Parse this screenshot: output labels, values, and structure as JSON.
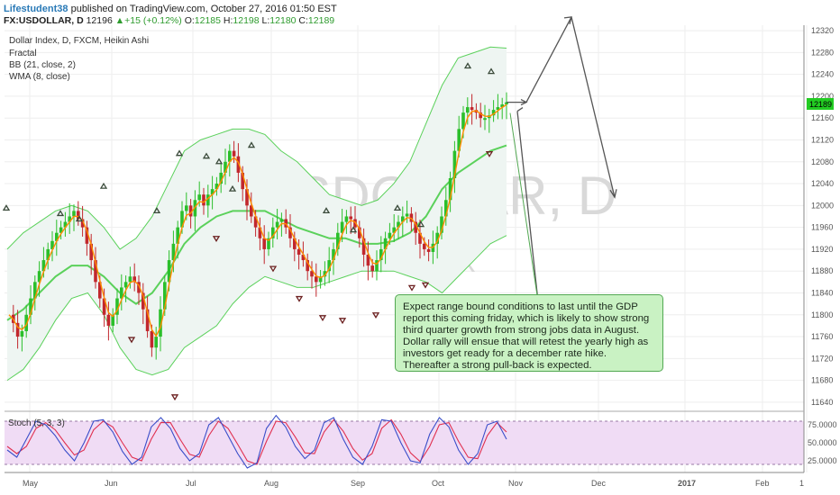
{
  "header": {
    "author": "Lifestudent38",
    "published": "published on TradingView.com, October 27, 2016 01:50 EST",
    "symbol": "FX:USDOLLAR, D",
    "last": "12196",
    "change": "+15 (+0.12%)",
    "open_label": "O:",
    "open": "12185",
    "high_label": "H:",
    "high": "12198",
    "low_label": "L:",
    "low": "12180",
    "close_label": "C:",
    "close": "12189"
  },
  "legend": {
    "main": "Dollar Index, D, FXCM, Heikin Ashi",
    "ind1": "Fractal",
    "ind2": "BB (21, close, 2)",
    "ind3": "WMA (8, close)",
    "stoch": "Stoch (5, 3, 3)"
  },
  "watermark": {
    "symbol": "USDOLLAR, D",
    "name": "Dollar Index"
  },
  "annotation": "Expect range bound conditions to last until the GDP report this coming friday, which is likely to show strong third quarter growth from strong jobs data in August. Dollar rally will ensue that will retest the yearly high as investors get ready for a december rate hike. Thereafter a strong pull-back is expected.",
  "price_badge": "12189",
  "colors": {
    "bull": "#2bbf2b",
    "bear": "#c1272d",
    "band": "#5bd15b",
    "band_fill": "#eef5f2",
    "wma": "#ff8c00",
    "stoch_k": "#3a4ec9",
    "stoch_d": "#e03050",
    "stoch_bg": "#f0dcf5",
    "arrow": "#555555",
    "badge": "#22cc22"
  },
  "chart_data": {
    "type": "candlestick",
    "title": "Dollar Index, D, FXCM, Heikin Ashi",
    "x_ticks": [
      "May",
      "Jun",
      "Jul",
      "Aug",
      "Sep",
      "Oct",
      "Nov",
      "Dec",
      "2017",
      "Feb",
      "1"
    ],
    "y_ticks": [
      11640,
      11680,
      11720,
      11760,
      11800,
      11840,
      11880,
      11920,
      11960,
      12000,
      12040,
      12080,
      12120,
      12160,
      12200,
      12240,
      12280,
      12320
    ],
    "ylim": [
      11625,
      12330
    ],
    "close_path": [
      11800,
      11785,
      11760,
      11770,
      11800,
      11830,
      11860,
      11880,
      11900,
      11920,
      11935,
      11950,
      11960,
      11970,
      11980,
      11990,
      11975,
      11960,
      11930,
      11900,
      11860,
      11830,
      11800,
      11780,
      11800,
      11830,
      11850,
      11860,
      11870,
      11860,
      11840,
      11810,
      11770,
      11740,
      11760,
      11810,
      11860,
      11900,
      11930,
      11960,
      11990,
      12000,
      11980,
      12010,
      12020,
      12000,
      12020,
      12030,
      12040,
      12060,
      12080,
      12100,
      12090,
      12060,
      12030,
      12000,
      11980,
      11960,
      11940,
      11920,
      11940,
      11960,
      11970,
      11975,
      11960,
      11940,
      11920,
      11910,
      11900,
      11880,
      11870,
      11860,
      11870,
      11880,
      11900,
      11920,
      11950,
      11970,
      11980,
      11975,
      11960,
      11940,
      11910,
      11890,
      11880,
      11900,
      11920,
      11940,
      11950,
      11960,
      11970,
      11980,
      11985,
      11970,
      11950,
      11930,
      11920,
      11915,
      11930,
      11950,
      11980,
      12010,
      12050,
      12100,
      12140,
      12170,
      12180,
      12175,
      12170,
      12160,
      12160,
      12165,
      12175,
      12180,
      12185,
      12189
    ],
    "bb_upper": [
      11920,
      11950,
      11970,
      11990,
      12000,
      11990,
      11960,
      11920,
      11940,
      11980,
      12040,
      12100,
      12120,
      12130,
      12140,
      12140,
      12130,
      12100,
      12080,
      12050,
      12020,
      12010,
      12000,
      12010,
      12040,
      12080,
      12150,
      12220,
      12270,
      12280,
      12290,
      12288
    ],
    "bb_lower": [
      11680,
      11700,
      11740,
      11790,
      11830,
      11840,
      11800,
      11740,
      11700,
      11690,
      11700,
      11740,
      11760,
      11780,
      11820,
      11850,
      11870,
      11860,
      11850,
      11850,
      11860,
      11870,
      11880,
      11880,
      11880,
      11870,
      11860,
      11840,
      11870,
      11900,
      11930,
      11945
    ],
    "bb_basis": [
      11790,
      11810,
      11840,
      11870,
      11890,
      11890,
      11870,
      11840,
      11820,
      11840,
      11880,
      11930,
      11960,
      11980,
      11990,
      11990,
      11990,
      11975,
      11960,
      11950,
      11940,
      11940,
      11930,
      11930,
      11935,
      11950,
      11980,
      12030,
      12060,
      12080,
      12100,
      12110
    ],
    "fractals_up_x": [
      7,
      67,
      88,
      115,
      174,
      199,
      229,
      243,
      258,
      279,
      362,
      392,
      441,
      467,
      519,
      545
    ],
    "fractals_up_price": [
      11995,
      11985,
      11975,
      12035,
      11990,
      12095,
      12090,
      12080,
      12030,
      12110,
      11990,
      11955,
      11995,
      11965,
      12255,
      12245
    ],
    "fractals_down_x": [
      146,
      194,
      240,
      303,
      332,
      358,
      380,
      417,
      457,
      472,
      543
    ],
    "fractals_down_price": [
      11755,
      11650,
      11940,
      11885,
      11830,
      11795,
      11790,
      11800,
      11850,
      11855,
      12095
    ],
    "projection": {
      "start_price": 12189,
      "peak_price": 12345,
      "end_price": 12015
    },
    "stochastic": {
      "ylim": [
        10,
        90
      ],
      "y_ticks": [
        25,
        50,
        75
      ],
      "k": [
        40,
        30,
        55,
        80,
        75,
        60,
        40,
        25,
        50,
        80,
        82,
        65,
        38,
        20,
        30,
        72,
        85,
        70,
        42,
        25,
        35,
        75,
        85,
        60,
        35,
        15,
        22,
        70,
        88,
        72,
        45,
        28,
        40,
        78,
        85,
        55,
        30,
        20,
        45,
        82,
        80,
        50,
        25,
        22,
        62,
        85,
        72,
        40,
        20,
        35,
        75,
        80,
        55
      ],
      "d": [
        45,
        35,
        45,
        70,
        78,
        68,
        50,
        33,
        40,
        68,
        80,
        72,
        50,
        30,
        25,
        55,
        78,
        78,
        55,
        34,
        30,
        60,
        80,
        70,
        48,
        25,
        20,
        52,
        80,
        78,
        58,
        36,
        35,
        65,
        82,
        66,
        42,
        26,
        35,
        70,
        82,
        62,
        36,
        24,
        45,
        75,
        78,
        52,
        30,
        28,
        60,
        78,
        65
      ],
      "k_name": "Stoch (5, 3, 3)"
    }
  }
}
